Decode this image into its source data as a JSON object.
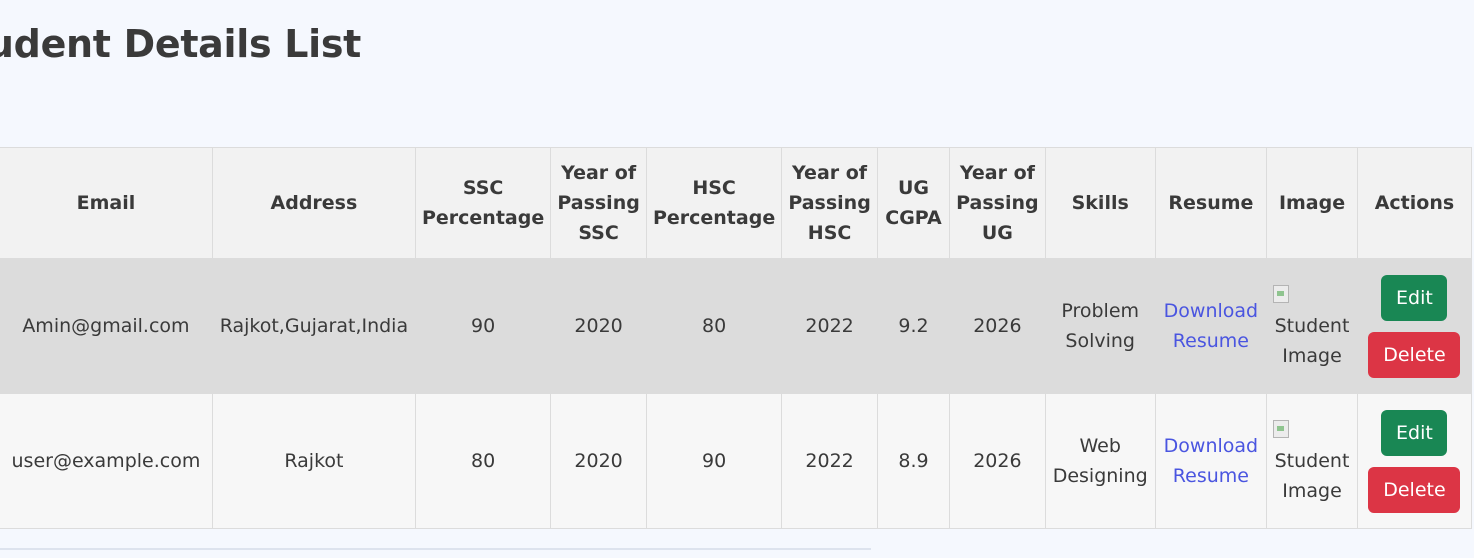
{
  "page": {
    "title": "Student Details List"
  },
  "table": {
    "headers": {
      "email": "Email",
      "address": "Address",
      "ssc_percentage": "SSC Percentage",
      "year_ssc": "Year of Passing SSC",
      "hsc_percentage": "HSC Percentage",
      "year_hsc": "Year of Passing HSC",
      "ug_cgpa": "UG CGPA",
      "year_ug": "Year of Passing UG",
      "skills": "Skills",
      "resume": "Resume",
      "image": "Image",
      "actions": "Actions"
    },
    "rows": [
      {
        "email": "Amin@gmail.com",
        "address": "Rajkot,Gujarat,India",
        "ssc_percentage": "90",
        "year_ssc": "2020",
        "hsc_percentage": "80",
        "year_hsc": "2022",
        "ug_cgpa": "9.2",
        "year_ug": "2026",
        "skills": "Problem Solving",
        "resume_link": "Download Resume",
        "image_alt": "Student Image",
        "edit_label": "Edit",
        "delete_label": "Delete"
      },
      {
        "email": "user@example.com",
        "address": "Rajkot",
        "ssc_percentage": "80",
        "year_ssc": "2020",
        "hsc_percentage": "90",
        "year_hsc": "2022",
        "ug_cgpa": "8.9",
        "year_ug": "2026",
        "skills": "Web Designing",
        "resume_link": "Download Resume",
        "image_alt": "Student Image",
        "edit_label": "Edit",
        "delete_label": "Delete"
      }
    ]
  },
  "colors": {
    "edit_button": "#198754",
    "delete_button": "#dc3545",
    "link": "#4a55e0",
    "header_bg": "#f2f2f2",
    "row_highlight": "#dcdcdc"
  }
}
